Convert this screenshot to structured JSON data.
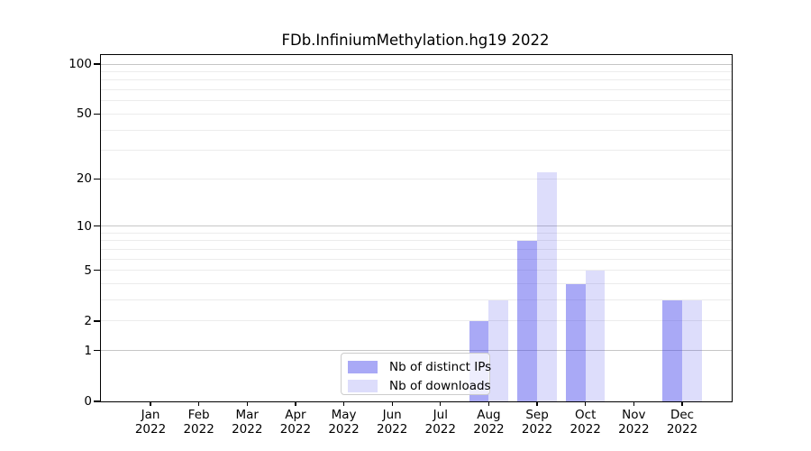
{
  "title": "FDb.InfiniumMethylation.hg19 2022",
  "chart_data": {
    "type": "bar",
    "title": "FDb.InfiniumMethylation.hg19 2022",
    "months": [
      "Jan",
      "Feb",
      "Mar",
      "Apr",
      "May",
      "Jun",
      "Jul",
      "Aug",
      "Sep",
      "Oct",
      "Nov",
      "Dec"
    ],
    "year": "2022",
    "series": [
      {
        "name": "Nb of distinct IPs",
        "values": [
          0,
          0,
          0,
          0,
          0,
          0,
          0,
          2,
          8,
          4,
          0,
          3
        ],
        "color_hex": "#a9a9f6",
        "color_rgba": "rgba(64,64,235,0.45)"
      },
      {
        "name": "Nb of downloads",
        "values": [
          0,
          0,
          0,
          0,
          0,
          0,
          0,
          3,
          22,
          5,
          0,
          3
        ],
        "color_hex": "#dcdcfb",
        "color_rgba": "rgba(64,64,235,0.18)"
      }
    ],
    "yticks": [
      0,
      1,
      2,
      5,
      10,
      20,
      50,
      100
    ],
    "ylim": [
      0,
      114
    ],
    "yscale": "log1p",
    "grid": "on",
    "legend_position": "lower center"
  }
}
